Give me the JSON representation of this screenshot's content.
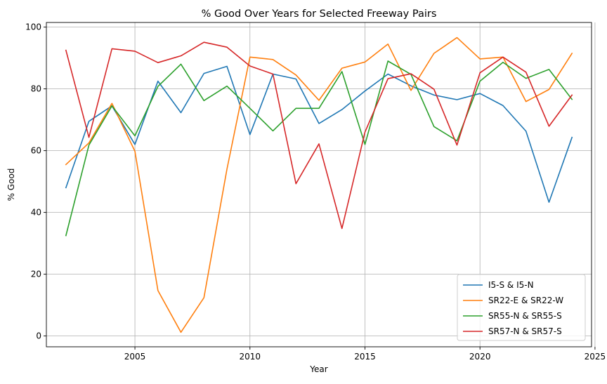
{
  "chart_data": {
    "type": "line",
    "title": "% Good Over Years for Selected Freeway Pairs",
    "xlabel": "Year",
    "ylabel": "% Good",
    "xlim": [
      2001.15,
      2024.85
    ],
    "ylim": [
      -3.5,
      101.5
    ],
    "xticks": [
      2005,
      2010,
      2015,
      2020,
      2025
    ],
    "yticks": [
      0,
      20,
      40,
      60,
      80,
      100
    ],
    "grid": true,
    "legend_position": "lower-right",
    "x": [
      2002,
      2003,
      2004,
      2005,
      2006,
      2007,
      2008,
      2009,
      2010,
      2011,
      2012,
      2013,
      2014,
      2015,
      2016,
      2017,
      2018,
      2019,
      2020,
      2021,
      2022,
      2023,
      2024
    ],
    "series": [
      {
        "name": "I5-S & I5-N",
        "color": "#1f77b4",
        "values": [
          48.0,
          69.5,
          74.5,
          62.0,
          82.5,
          72.3,
          85.0,
          87.3,
          65.2,
          84.8,
          83.2,
          68.8,
          73.3,
          79.3,
          84.8,
          81.0,
          78.0,
          76.5,
          78.5,
          74.6,
          66.3,
          43.3,
          64.3
        ]
      },
      {
        "name": "SR22-E & SR22-W",
        "color": "#ff7f0e",
        "values": [
          55.5,
          62.5,
          75.3,
          59.8,
          14.7,
          1.2,
          12.4,
          54.0,
          90.3,
          89.5,
          84.5,
          76.3,
          86.7,
          88.7,
          94.5,
          79.5,
          91.5,
          96.6,
          89.7,
          90.3,
          75.9,
          79.8,
          91.5
        ]
      },
      {
        "name": "SR55-N & SR55-S",
        "color": "#2ca02c",
        "values": [
          32.5,
          61.8,
          74.5,
          64.8,
          80.8,
          88.0,
          76.2,
          80.9,
          73.7,
          66.4,
          73.7,
          73.7,
          85.6,
          62.0,
          89.0,
          84.7,
          67.8,
          63.2,
          82.5,
          88.6,
          83.4,
          86.3,
          76.6
        ]
      },
      {
        "name": "SR57-N & SR57-S",
        "color": "#d62728",
        "values": [
          92.5,
          64.3,
          93.0,
          92.2,
          88.5,
          90.7,
          95.1,
          93.5,
          87.4,
          84.8,
          49.3,
          62.2,
          34.8,
          66.0,
          83.3,
          84.9,
          79.9,
          61.8,
          85.2,
          90.3,
          85.4,
          67.9,
          78.0
        ]
      }
    ]
  }
}
